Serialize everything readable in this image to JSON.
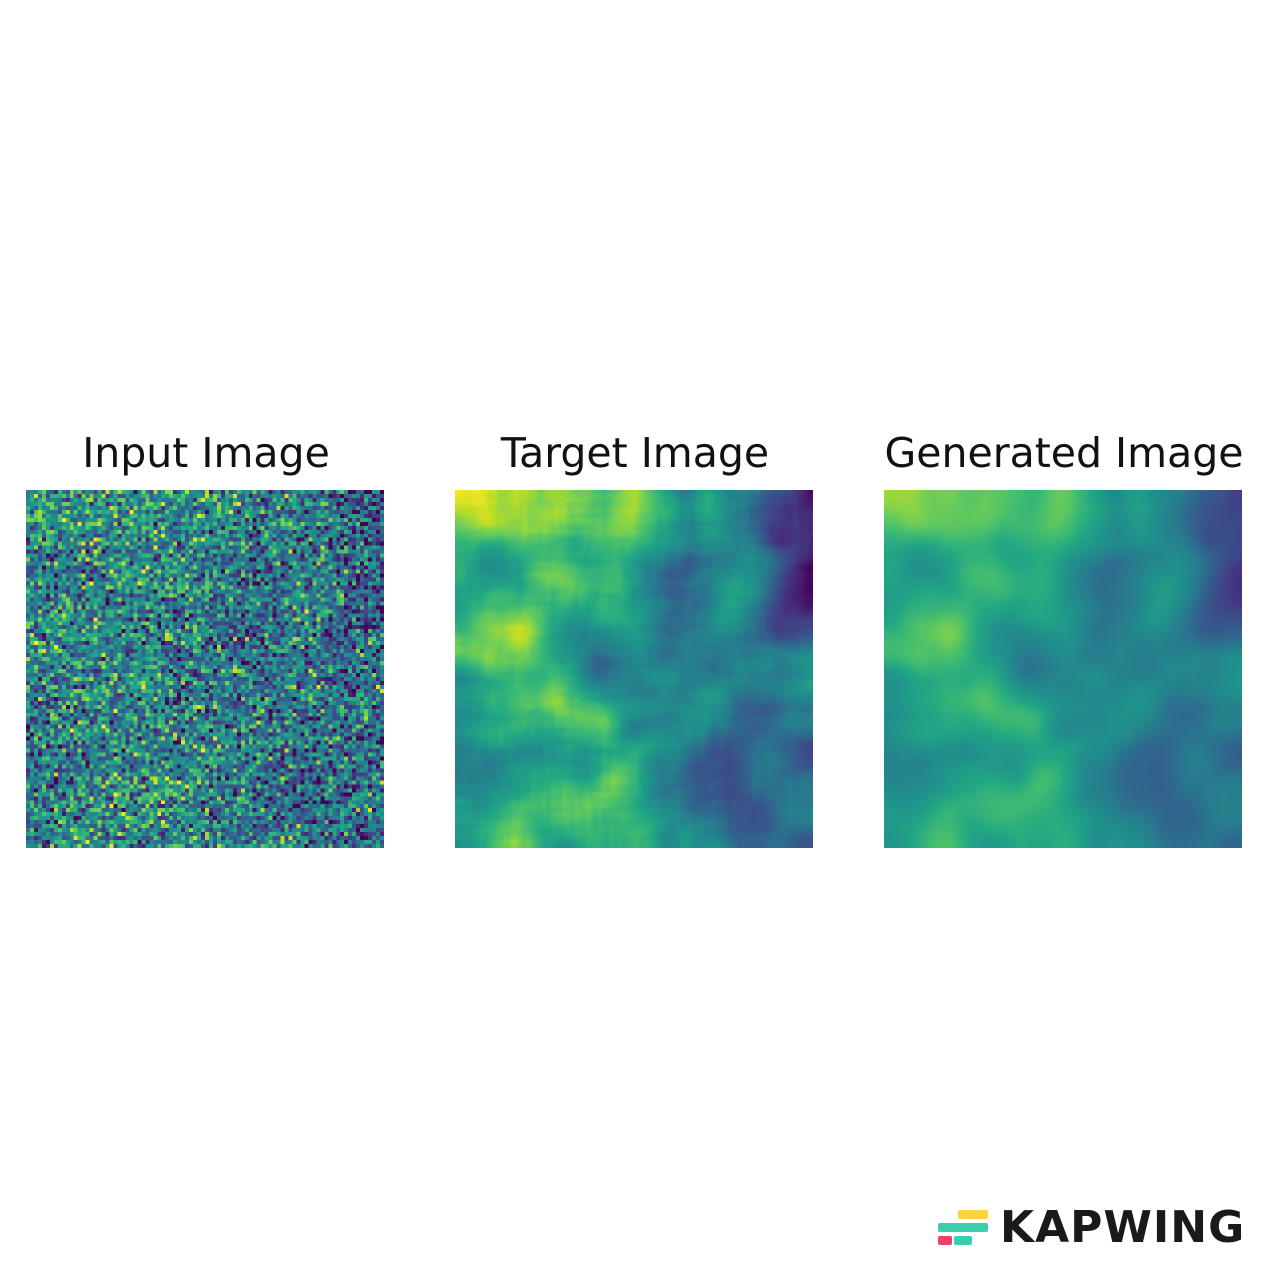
{
  "panels": [
    {
      "title": "Input Image",
      "kind": "noisy"
    },
    {
      "title": "Target Image",
      "kind": "smooth"
    },
    {
      "title": "Generated Image",
      "kind": "blurred"
    }
  ],
  "colormap": "viridis",
  "watermark": {
    "text": "KAPWING",
    "logo_colors": [
      "#ffd23f",
      "#3bceac",
      "#ee4266"
    ]
  }
}
